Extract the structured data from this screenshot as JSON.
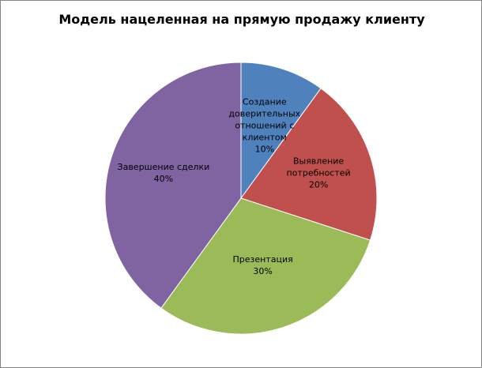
{
  "chart_data": {
    "type": "pie",
    "title": "Модель нацеленная на прямую продажу клиенту",
    "slices": [
      {
        "label_lines": [
          "Создание",
          "доверительных",
          "отношений с",
          "клиентом"
        ],
        "value": 10,
        "value_label": "10%",
        "color": "#4f81bd"
      },
      {
        "label_lines": [
          "Выявление",
          "потребностей"
        ],
        "value": 20,
        "value_label": "20%",
        "color": "#c0504d"
      },
      {
        "label_lines": [
          "Презентация"
        ],
        "value": 30,
        "value_label": "30%",
        "color": "#9bbb59"
      },
      {
        "label_lines": [
          "Завершение сделки"
        ],
        "value": 40,
        "value_label": "40%",
        "color": "#8064a2"
      }
    ],
    "legend": "none",
    "data_labels": "inside"
  }
}
